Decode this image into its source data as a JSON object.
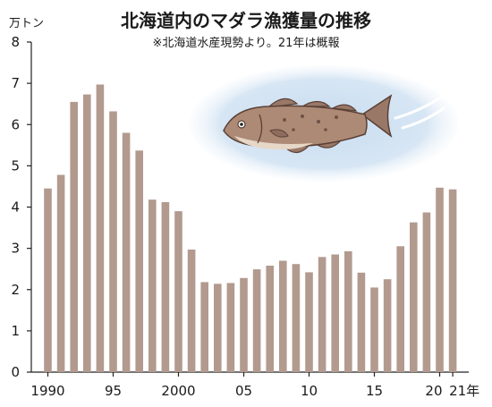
{
  "chart_data": {
    "type": "bar",
    "title": "北海道内のマダラ漁獲量の推移",
    "subtitle": "※北海道水産現勢より。21年は概報",
    "y_unit": "万トン",
    "ylim": [
      0,
      8
    ],
    "y_ticks": [
      "0",
      "1",
      "2",
      "3",
      "4",
      "5",
      "6",
      "7",
      "8"
    ],
    "x_tick_labels": [
      {
        "year": 1990,
        "label": "1990"
      },
      {
        "year": 1995,
        "label": "95"
      },
      {
        "year": 2000,
        "label": "2000"
      },
      {
        "year": 2005,
        "label": "05"
      },
      {
        "year": 2010,
        "label": "10"
      },
      {
        "year": 2015,
        "label": "15"
      },
      {
        "year": 2020,
        "label": "20"
      },
      {
        "year": 2021,
        "label": "21年"
      }
    ],
    "grid": false,
    "bar_color": "#b29a8e",
    "x": [
      1990,
      1991,
      1992,
      1993,
      1994,
      1995,
      1996,
      1997,
      1998,
      1999,
      2000,
      2001,
      2002,
      2003,
      2004,
      2005,
      2006,
      2007,
      2008,
      2009,
      2010,
      2011,
      2012,
      2013,
      2014,
      2015,
      2016,
      2017,
      2018,
      2019,
      2020,
      2021
    ],
    "values": [
      4.45,
      4.78,
      6.55,
      6.73,
      6.97,
      6.32,
      5.8,
      5.37,
      4.18,
      4.12,
      3.9,
      2.97,
      2.18,
      2.14,
      2.16,
      2.28,
      2.49,
      2.58,
      2.7,
      2.62,
      2.42,
      2.79,
      2.85,
      2.93,
      2.41,
      2.05,
      2.25,
      3.05,
      3.63,
      3.87,
      4.47,
      4.43
    ]
  }
}
